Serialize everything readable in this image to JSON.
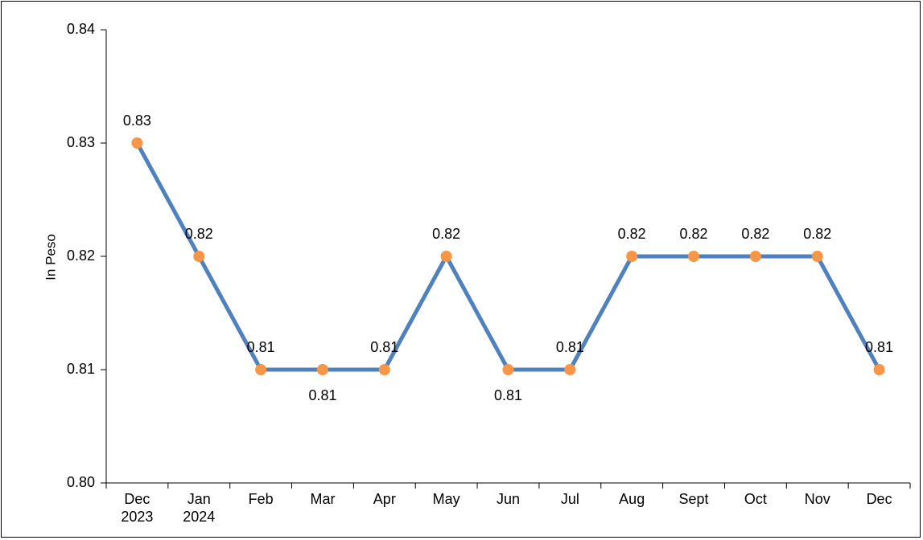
{
  "chart_data": {
    "type": "line",
    "title": "",
    "xlabel": "",
    "ylabel": "In Peso",
    "categories": [
      [
        "Dec",
        "2023"
      ],
      [
        "Jan",
        "2024"
      ],
      [
        "Feb"
      ],
      [
        "Mar"
      ],
      [
        "Apr"
      ],
      [
        "May"
      ],
      [
        "Jun"
      ],
      [
        "Jul"
      ],
      [
        "Aug"
      ],
      [
        "Sept"
      ],
      [
        "Oct"
      ],
      [
        "Nov"
      ],
      [
        "Dec"
      ]
    ],
    "values": [
      0.83,
      0.82,
      0.81,
      0.81,
      0.81,
      0.82,
      0.81,
      0.81,
      0.82,
      0.82,
      0.82,
      0.82,
      0.81
    ],
    "data_labels": [
      "0.83",
      "0.82",
      "0.81",
      "0.81",
      "0.81",
      "0.82",
      "0.81",
      "0.81",
      "0.82",
      "0.82",
      "0.82",
      "0.82",
      "0.81"
    ],
    "label_position": [
      "above",
      "above",
      "above",
      "below",
      "above",
      "above",
      "below",
      "above",
      "above",
      "above",
      "above",
      "above",
      "above"
    ],
    "ylim": [
      0.8,
      0.84
    ],
    "yticks": [
      "0.80",
      "0.81",
      "0.82",
      "0.83",
      "0.84"
    ],
    "grid": false,
    "legend": "none",
    "colors": {
      "line": "#4f81bd",
      "marker": "#f79646"
    }
  }
}
